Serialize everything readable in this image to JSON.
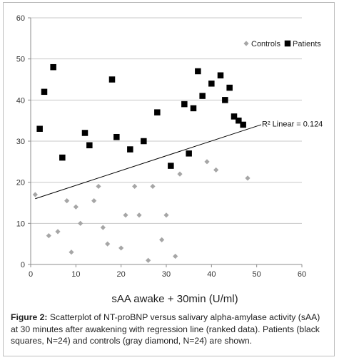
{
  "chart_data": {
    "type": "scatter",
    "xlabel": "sAA awake + 30min (U/ml)",
    "ylabel": "",
    "xlim": [
      0,
      60
    ],
    "ylim": [
      0,
      60
    ],
    "xticks": [
      0,
      10,
      20,
      30,
      40,
      50,
      60
    ],
    "yticks": [
      0,
      10,
      20,
      30,
      40,
      50,
      60
    ],
    "grid": "horizontal",
    "legend_position": "top-right",
    "series": [
      {
        "name": "Controls",
        "marker": "diamond",
        "color": "#a6a6a6",
        "points": [
          {
            "x": 1,
            "y": 17
          },
          {
            "x": 4,
            "y": 7
          },
          {
            "x": 6,
            "y": 8
          },
          {
            "x": 8,
            "y": 15.5
          },
          {
            "x": 9,
            "y": 3
          },
          {
            "x": 10,
            "y": 14
          },
          {
            "x": 11,
            "y": 10
          },
          {
            "x": 14,
            "y": 15.5
          },
          {
            "x": 15,
            "y": 19
          },
          {
            "x": 16,
            "y": 9
          },
          {
            "x": 17,
            "y": 5
          },
          {
            "x": 20,
            "y": 4
          },
          {
            "x": 21,
            "y": 12
          },
          {
            "x": 23,
            "y": 19
          },
          {
            "x": 24,
            "y": 12
          },
          {
            "x": 26,
            "y": 1
          },
          {
            "x": 27,
            "y": 19
          },
          {
            "x": 29,
            "y": 6
          },
          {
            "x": 30,
            "y": 12
          },
          {
            "x": 32,
            "y": 2
          },
          {
            "x": 33,
            "y": 22
          },
          {
            "x": 39,
            "y": 25
          },
          {
            "x": 41,
            "y": 23
          },
          {
            "x": 48,
            "y": 21
          }
        ]
      },
      {
        "name": "Patients",
        "marker": "square",
        "color": "#000000",
        "points": [
          {
            "x": 2,
            "y": 33
          },
          {
            "x": 3,
            "y": 42
          },
          {
            "x": 5,
            "y": 48
          },
          {
            "x": 7,
            "y": 26
          },
          {
            "x": 12,
            "y": 32
          },
          {
            "x": 13,
            "y": 29
          },
          {
            "x": 18,
            "y": 45
          },
          {
            "x": 19,
            "y": 31
          },
          {
            "x": 22,
            "y": 28
          },
          {
            "x": 25,
            "y": 30
          },
          {
            "x": 28,
            "y": 37
          },
          {
            "x": 31,
            "y": 24
          },
          {
            "x": 34,
            "y": 39
          },
          {
            "x": 35,
            "y": 27
          },
          {
            "x": 36,
            "y": 38
          },
          {
            "x": 37,
            "y": 47
          },
          {
            "x": 38,
            "y": 41
          },
          {
            "x": 40,
            "y": 44
          },
          {
            "x": 42,
            "y": 46
          },
          {
            "x": 43,
            "y": 40
          },
          {
            "x": 44,
            "y": 43
          },
          {
            "x": 45,
            "y": 36
          },
          {
            "x": 46,
            "y": 35
          },
          {
            "x": 47,
            "y": 34
          }
        ]
      }
    ],
    "regression_line": {
      "x1": 1,
      "y1": 16,
      "x2": 51,
      "y2": 34
    },
    "annotation": {
      "text": "R² Linear = 0.124",
      "x": 51,
      "y": 32
    }
  },
  "caption": {
    "label": "Figure 2:",
    "text": "Scatterplot of NT-proBNP versus salivary alpha-amylase activity (sAA) at 30 minutes after awakening with regression line (ranked data). Patients (black squares, N=24) and controls (gray diamond, N=24) are shown."
  }
}
